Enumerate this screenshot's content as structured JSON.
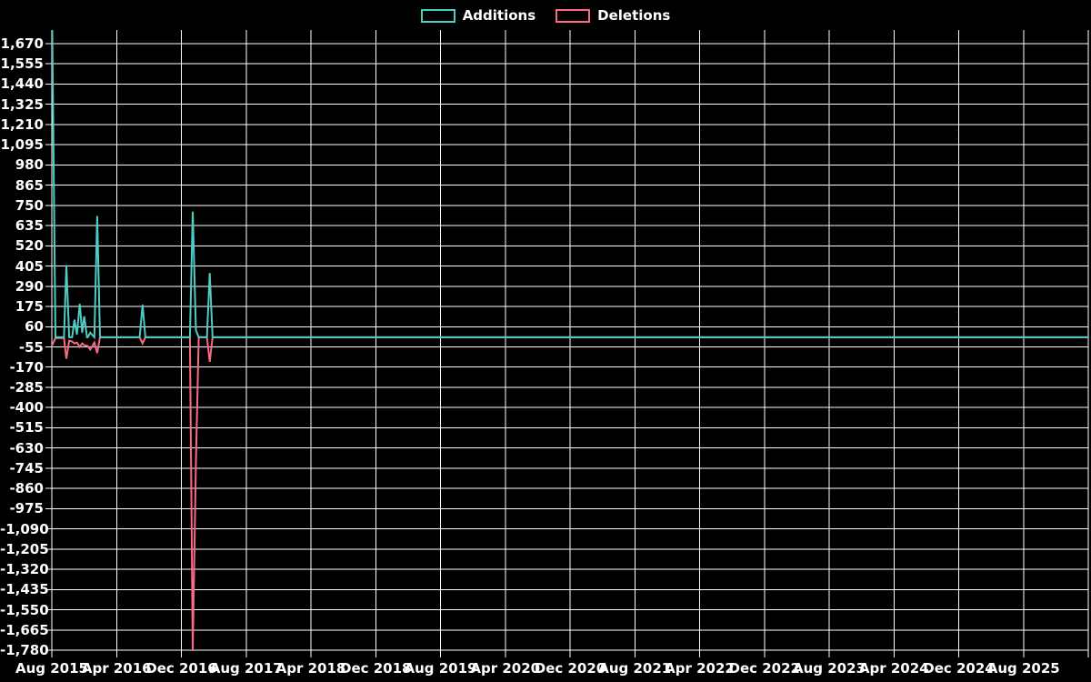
{
  "legend": {
    "additions_label": "Additions",
    "deletions_label": "Deletions"
  },
  "chart_data": {
    "type": "line",
    "title": "",
    "description": "Weekly additions and deletions frequency chart, black background, white grid",
    "legend_position": "top-center",
    "grid": true,
    "colors": {
      "background": "#000000",
      "grid": "#ffffff",
      "text": "#ffffff",
      "additions": "#4ecdc4",
      "deletions": "#fa6a83"
    },
    "x_axis": {
      "start": "Aug 2015",
      "end": "Aug 2025",
      "tick_interval_months": 8,
      "tick_labels": [
        "Aug 2015",
        "Apr 2016",
        "Dec 2016",
        "Aug 2017",
        "Apr 2018",
        "Dec 2018",
        "Aug 2019",
        "Apr 2020",
        "Dec 2020",
        "Aug 2021",
        "Apr 2022",
        "Dec 2022",
        "Aug 2023",
        "Apr 2024",
        "Dec 2024",
        "Aug 2025"
      ],
      "tick_month_indices": [
        0,
        8,
        16,
        24,
        32,
        40,
        48,
        56,
        64,
        72,
        80,
        88,
        96,
        104,
        112,
        120
      ],
      "unlabeled_gridline_month_index": 128,
      "total_months": 128
    },
    "y_axis": {
      "tick_step": 115,
      "max_gridline": 1670,
      "min_gridline": -1780,
      "tick_values": [
        1670,
        1555,
        1440,
        1325,
        1210,
        1095,
        980,
        865,
        750,
        635,
        520,
        405,
        290,
        175,
        60,
        -55,
        -170,
        -285,
        -400,
        -515,
        -630,
        -745,
        -860,
        -975,
        -1090,
        -1205,
        -1320,
        -1435,
        -1550,
        -1665,
        -1780
      ],
      "tick_labels": [
        "1,670",
        "1,555",
        "1,440",
        "1,325",
        "1,210",
        "1,095",
        "980",
        "865",
        "750",
        "635",
        "520",
        "405",
        "290",
        "175",
        "60",
        "-55",
        "-170",
        "-285",
        "-400",
        "-515",
        "-630",
        "-745",
        "-860",
        "-975",
        "-1,090",
        "-1,205",
        "-1,320",
        "-1,435",
        "-1,550",
        "-1,665",
        "-1,780"
      ]
    },
    "series": [
      {
        "name": "Additions",
        "color": "#4ecdc4",
        "points_unit": "[months_since_Aug_2015, value]",
        "points": [
          [
            0.05,
            1781
          ],
          [
            0.45,
            0
          ],
          [
            1.5,
            0
          ],
          [
            1.8,
            410
          ],
          [
            2.15,
            0
          ],
          [
            2.5,
            0
          ],
          [
            2.8,
            100
          ],
          [
            3.1,
            15
          ],
          [
            3.45,
            190
          ],
          [
            3.75,
            25
          ],
          [
            4.0,
            120
          ],
          [
            4.35,
            0
          ],
          [
            4.45,
            0
          ],
          [
            4.75,
            25
          ],
          [
            5.25,
            0
          ],
          [
            5.6,
            690
          ],
          [
            5.95,
            0
          ],
          [
            10.85,
            0
          ],
          [
            11.2,
            185
          ],
          [
            11.55,
            0
          ],
          [
            17.05,
            0
          ],
          [
            17.4,
            715
          ],
          [
            17.8,
            40
          ],
          [
            18.15,
            0
          ],
          [
            19.15,
            0
          ],
          [
            19.5,
            365
          ],
          [
            19.85,
            0
          ],
          [
            128,
            0
          ]
        ]
      },
      {
        "name": "Deletions",
        "color": "#fa6a83",
        "points_unit": "[months_since_Aug_2015, value]",
        "points": [
          [
            0.05,
            -45
          ],
          [
            0.45,
            -5
          ],
          [
            1.5,
            -5
          ],
          [
            1.8,
            -122
          ],
          [
            2.15,
            -20
          ],
          [
            2.5,
            -25
          ],
          [
            2.8,
            -35
          ],
          [
            3.1,
            -30
          ],
          [
            3.45,
            -55
          ],
          [
            3.75,
            -35
          ],
          [
            4.0,
            -45
          ],
          [
            4.45,
            -50
          ],
          [
            4.75,
            -70
          ],
          [
            5.25,
            -30
          ],
          [
            5.6,
            -90
          ],
          [
            5.95,
            0
          ],
          [
            10.85,
            0
          ],
          [
            11.2,
            -35
          ],
          [
            11.55,
            0
          ],
          [
            17.05,
            0
          ],
          [
            17.4,
            -1780
          ],
          [
            17.8,
            -710
          ],
          [
            18.15,
            0
          ],
          [
            19.15,
            0
          ],
          [
            19.5,
            -140
          ],
          [
            19.85,
            0
          ],
          [
            128,
            0
          ]
        ]
      }
    ]
  }
}
